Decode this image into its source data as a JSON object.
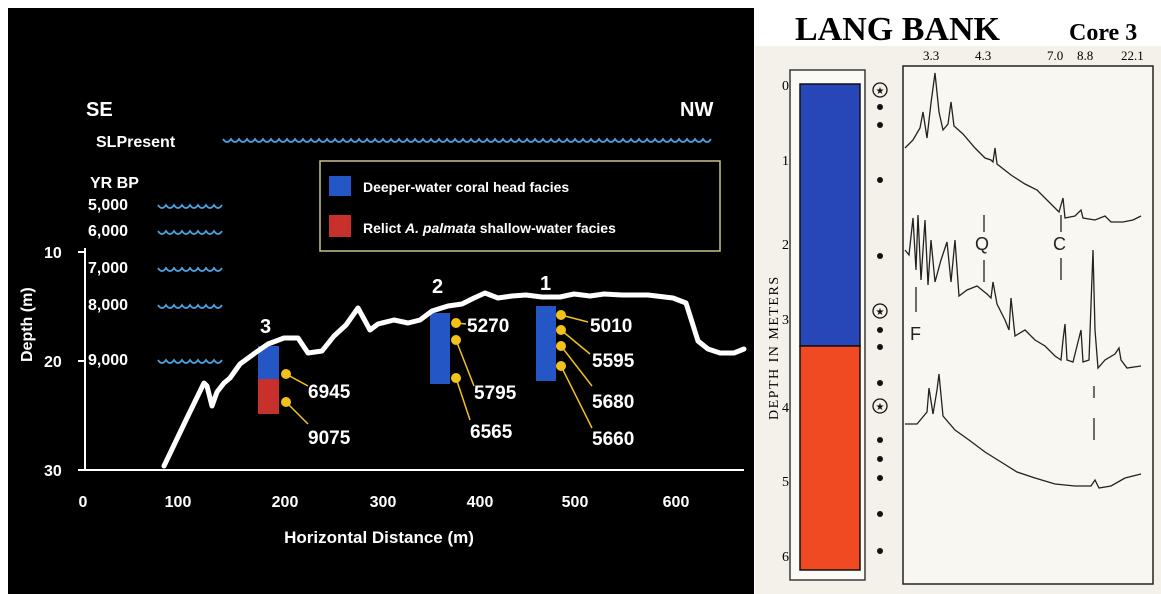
{
  "left_panel": {
    "direction_left": "SE",
    "direction_right": "NW",
    "sea_level_label": "SLPresent",
    "yr_bp_header": "YR BP",
    "yr_bp_labels": [
      "5,000",
      "6,000",
      "7,000",
      "8,000",
      "9,000"
    ],
    "y_axis_label": "Depth (m)",
    "y_ticks": [
      "10",
      "20",
      "30"
    ],
    "x_axis_label": "Horizontal Distance (m)",
    "x_ticks": [
      "0",
      "100",
      "200",
      "300",
      "400",
      "500",
      "600"
    ],
    "legend": {
      "blue_label": "Deeper-water coral head facies",
      "red_prefix": "Relict ",
      "red_italic": "A. palmata",
      "red_suffix": " shallow-water facies",
      "blue_color": "#2457c5",
      "red_color": "#c8312b"
    },
    "cores": [
      {
        "label": "3",
        "ages": [
          "6945",
          "9075"
        ]
      },
      {
        "label": "2",
        "ages": [
          "5270",
          "5795",
          "6565"
        ]
      },
      {
        "label": "1",
        "ages": [
          "5010",
          "5595",
          "5680",
          "5660"
        ]
      }
    ],
    "dot_color": "#f2c21b",
    "wave_color": "#4aa3e0"
  },
  "right_panel": {
    "title_main": "LANG BANK",
    "title_sub": "Core 3",
    "top_labels": [
      "3.3",
      "4.3",
      "7.0",
      "8.8",
      "22.1"
    ],
    "depth_label": "DEPTH IN METERS",
    "depth_ticks": [
      "0",
      "1",
      "2",
      "3",
      "4",
      "5",
      "6"
    ],
    "peak_labels": [
      "Q",
      "C",
      "F"
    ],
    "blue_color": "#2746b8",
    "orange_color": "#ef4a22"
  }
}
